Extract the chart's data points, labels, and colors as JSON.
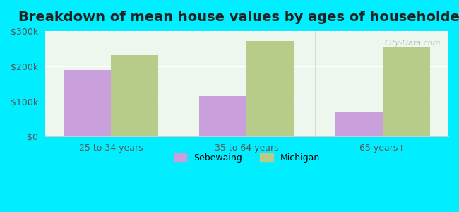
{
  "title": "Breakdown of mean house values by ages of householders",
  "categories": [
    "25 to 34 years",
    "35 to 64 years",
    "65 years+"
  ],
  "sebewaing_values": [
    190000,
    115000,
    68000
  ],
  "michigan_values": [
    232000,
    272000,
    255000
  ],
  "sebewaing_color": "#c9a0dc",
  "michigan_color": "#b8cc8a",
  "ylim": [
    0,
    300000
  ],
  "yticks": [
    0,
    100000,
    200000,
    300000
  ],
  "ytick_labels": [
    "$0",
    "$100k",
    "$200k",
    "$300k"
  ],
  "background_color": "#00eeff",
  "plot_bg_color_top": "#e8f5e8",
  "plot_bg_color_bottom": "#f5fff5",
  "legend_labels": [
    "Sebewaing",
    "Michigan"
  ],
  "title_fontsize": 14,
  "bar_width": 0.35,
  "watermark": "City-Data.com"
}
